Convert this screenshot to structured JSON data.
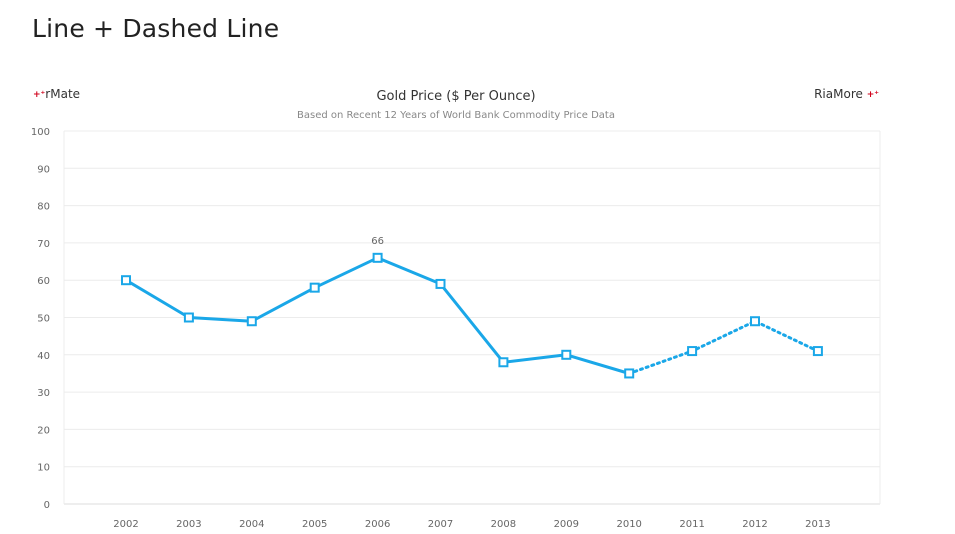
{
  "page": {
    "title": "Line + Dashed Line"
  },
  "branding": {
    "left_label": "rMate",
    "right_label": "RiaMore",
    "plus_glyph": "+⁺"
  },
  "chart_data": {
    "type": "line",
    "title": "Gold Price ($ Per Ounce)",
    "subtitle": "Based on Recent 12 Years of World Bank Commodity Price Data",
    "xlabel": "",
    "ylabel": "",
    "categories": [
      "2002",
      "2003",
      "2004",
      "2005",
      "2006",
      "2007",
      "2008",
      "2009",
      "2010",
      "2011",
      "2012",
      "2013"
    ],
    "series": [
      {
        "values": [
          60,
          50,
          49,
          58,
          66,
          59,
          38,
          40,
          35,
          41,
          49,
          41
        ],
        "solid_through_category": "2010",
        "dashed_from_category": "2010",
        "marker": "square",
        "color": "#1aa7e8"
      }
    ],
    "data_labels": [
      {
        "category": "2006",
        "value": 66,
        "text": "66"
      }
    ],
    "ylim": [
      0,
      100
    ],
    "yticks": [
      0,
      10,
      20,
      30,
      40,
      50,
      60,
      70,
      80,
      90,
      100
    ],
    "grid": true,
    "legend": "none",
    "colors": {
      "line": "#1aa7e8",
      "grid": "#ececec",
      "axis": "#dddddd",
      "marker_fill": "#ffffff"
    }
  }
}
